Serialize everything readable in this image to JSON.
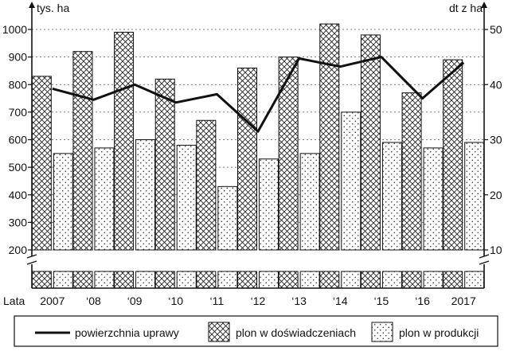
{
  "chart_data": {
    "type": "bar",
    "left_axis_unit": "tys. ha",
    "right_axis_unit": "dt z ha",
    "years_label": "Lata",
    "categories": [
      "2007",
      "‘08",
      "‘09",
      "‘10",
      "‘11",
      "‘12",
      "‘13",
      "‘14",
      "‘15",
      "‘16",
      "2017"
    ],
    "left_ticks": [
      "1000",
      "900",
      "800",
      "700",
      "600",
      "500",
      "400",
      "300",
      "200"
    ],
    "right_ticks": [
      "50",
      "40",
      "30",
      "20",
      "10"
    ],
    "left_range": [
      200,
      1000
    ],
    "right_range": [
      10,
      50
    ],
    "grid": true,
    "axis_break": true,
    "legend_position": "bottom",
    "series": [
      {
        "name": "powierzchnia uprawy",
        "kind": "line",
        "axis": "left",
        "values": [
          785,
          745,
          800,
          735,
          765,
          630,
          895,
          865,
          900,
          750,
          880
        ]
      },
      {
        "name": "plon w doświadczeniach",
        "kind": "bar",
        "pattern": "crosshatch",
        "axis": "right",
        "values": [
          41.5,
          46,
          49.5,
          41,
          33.5,
          43,
          45,
          51,
          49,
          38.5,
          44.5
        ]
      },
      {
        "name": "plon w produkcji",
        "kind": "bar",
        "pattern": "dots",
        "axis": "right",
        "values": [
          27.5,
          28.5,
          30,
          29,
          21.5,
          26.5,
          27.5,
          35,
          29.5,
          28.5,
          29.5
        ]
      }
    ]
  }
}
